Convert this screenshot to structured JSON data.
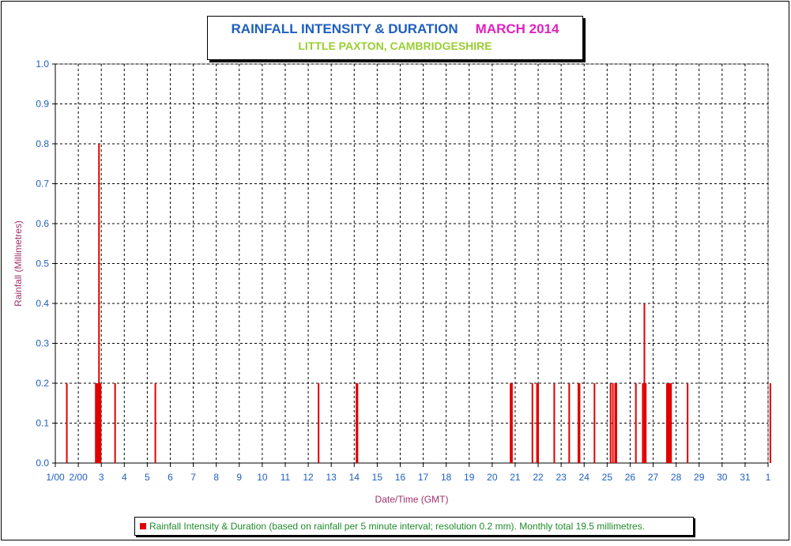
{
  "colors": {
    "bar": "#e00000",
    "title": "#1f5fbf",
    "month": "#e020c0",
    "subtitle": "#9acd32",
    "axis_text": "#1f5fbf",
    "axis_label": "#a0306a",
    "legend_text": "#1f8a2a"
  },
  "chart_data": {
    "type": "bar",
    "title": "RAINFALL INTENSITY & DURATION",
    "title_month": "MARCH 2014",
    "subtitle": "LITTLE PAXTON, CAMBRIDGESHIRE",
    "xlabel": "Date/Time (GMT)",
    "ylabel": "Rainfall (Millimetres)",
    "ylim": [
      0,
      1.0
    ],
    "xlim": [
      1,
      32
    ],
    "grid": true,
    "y_ticks": [
      "0.0",
      "0.1",
      "0.2",
      "0.3",
      "0.4",
      "0.5",
      "0.6",
      "0.7",
      "0.8",
      "0.9",
      "1.0"
    ],
    "x_ticks": [
      {
        "day": 1,
        "label": "1/00"
      },
      {
        "day": 2,
        "label": "2/00"
      },
      {
        "day": 3,
        "label": "3"
      },
      {
        "day": 4,
        "label": "4"
      },
      {
        "day": 5,
        "label": "5"
      },
      {
        "day": 6,
        "label": "6"
      },
      {
        "day": 7,
        "label": "7"
      },
      {
        "day": 8,
        "label": "8"
      },
      {
        "day": 9,
        "label": "9"
      },
      {
        "day": 10,
        "label": "10"
      },
      {
        "day": 11,
        "label": "11"
      },
      {
        "day": 12,
        "label": "12"
      },
      {
        "day": 13,
        "label": "13"
      },
      {
        "day": 14,
        "label": "14"
      },
      {
        "day": 15,
        "label": "15"
      },
      {
        "day": 16,
        "label": "16"
      },
      {
        "day": 17,
        "label": "17"
      },
      {
        "day": 18,
        "label": "18"
      },
      {
        "day": 19,
        "label": "19"
      },
      {
        "day": 20,
        "label": "20"
      },
      {
        "day": 21,
        "label": "21"
      },
      {
        "day": 22,
        "label": "22"
      },
      {
        "day": 23,
        "label": "23"
      },
      {
        "day": 24,
        "label": "24"
      },
      {
        "day": 25,
        "label": "25"
      },
      {
        "day": 26,
        "label": "26"
      },
      {
        "day": 27,
        "label": "27"
      },
      {
        "day": 28,
        "label": "28"
      },
      {
        "day": 29,
        "label": "29"
      },
      {
        "day": 30,
        "label": "30"
      },
      {
        "day": 31,
        "label": "31"
      },
      {
        "day": 32,
        "label": "1"
      }
    ],
    "series": [
      {
        "legend": "Rainfall Intensity & Duration (based on rainfall per 5 minute interval; resolution 0.2 mm). Monthly total 19.5 millimetres.",
        "points": [
          {
            "x": 1.5,
            "y": 0.2
          },
          {
            "x": 2.76,
            "y": 0.2
          },
          {
            "x": 2.8,
            "y": 0.2
          },
          {
            "x": 2.84,
            "y": 0.2
          },
          {
            "x": 2.87,
            "y": 0.2
          },
          {
            "x": 2.9,
            "y": 0.8
          },
          {
            "x": 2.94,
            "y": 0.2
          },
          {
            "x": 2.97,
            "y": 0.2
          },
          {
            "x": 3.6,
            "y": 0.2
          },
          {
            "x": 5.35,
            "y": 0.2
          },
          {
            "x": 12.45,
            "y": 0.2
          },
          {
            "x": 14.1,
            "y": 0.2
          },
          {
            "x": 14.14,
            "y": 0.2
          },
          {
            "x": 20.8,
            "y": 0.2
          },
          {
            "x": 20.86,
            "y": 0.2
          },
          {
            "x": 21.75,
            "y": 0.2
          },
          {
            "x": 21.95,
            "y": 0.2
          },
          {
            "x": 22.0,
            "y": 0.2
          },
          {
            "x": 22.7,
            "y": 0.2
          },
          {
            "x": 23.35,
            "y": 0.2
          },
          {
            "x": 23.75,
            "y": 0.2
          },
          {
            "x": 23.8,
            "y": 0.2
          },
          {
            "x": 24.45,
            "y": 0.2
          },
          {
            "x": 25.15,
            "y": 0.2
          },
          {
            "x": 25.25,
            "y": 0.2
          },
          {
            "x": 25.35,
            "y": 0.2
          },
          {
            "x": 25.4,
            "y": 0.2
          },
          {
            "x": 26.25,
            "y": 0.2
          },
          {
            "x": 26.55,
            "y": 0.2
          },
          {
            "x": 26.62,
            "y": 0.4
          },
          {
            "x": 26.68,
            "y": 0.2
          },
          {
            "x": 27.6,
            "y": 0.2
          },
          {
            "x": 27.66,
            "y": 0.2
          },
          {
            "x": 27.72,
            "y": 0.2
          },
          {
            "x": 27.78,
            "y": 0.2
          },
          {
            "x": 28.5,
            "y": 0.2
          },
          {
            "x": 32.1,
            "y": 0.2
          }
        ]
      }
    ]
  }
}
